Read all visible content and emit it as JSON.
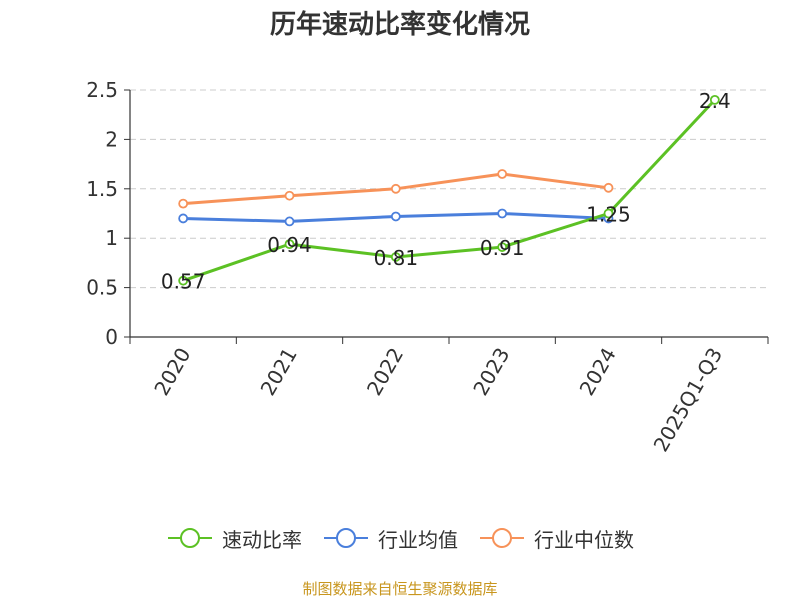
{
  "title": "历年速动比率变化情况",
  "source": "制图数据来自恒生聚源数据库",
  "colors": {
    "speed_ratio": "#5cc124",
    "industry_avg": "#4a7fdc",
    "industry_median": "#f79259",
    "grid": "#cccccc",
    "axis": "#333333"
  },
  "chart_data": {
    "type": "line",
    "categories": [
      "2020",
      "2021",
      "2022",
      "2023",
      "2024",
      "2025Q1-Q3"
    ],
    "ylim": [
      0,
      2.5
    ],
    "yticks": [
      "0",
      "0.5",
      "1",
      "1.5",
      "2",
      "2.5"
    ],
    "grid": true,
    "legend_position": "bottom",
    "series": [
      {
        "key": "speed_ratio",
        "name": "速动比率",
        "values": [
          0.57,
          0.94,
          0.81,
          0.91,
          1.25,
          2.4
        ],
        "labels": [
          "0.57",
          "0.94",
          "0.81",
          "0.91",
          "1.25",
          "2.4"
        ]
      },
      {
        "key": "industry_avg",
        "name": "行业均值",
        "values": [
          1.2,
          1.17,
          1.22,
          1.25,
          1.2,
          null
        ]
      },
      {
        "key": "industry_median",
        "name": "行业中位数",
        "values": [
          1.35,
          1.43,
          1.5,
          1.65,
          1.51,
          null
        ]
      }
    ]
  }
}
